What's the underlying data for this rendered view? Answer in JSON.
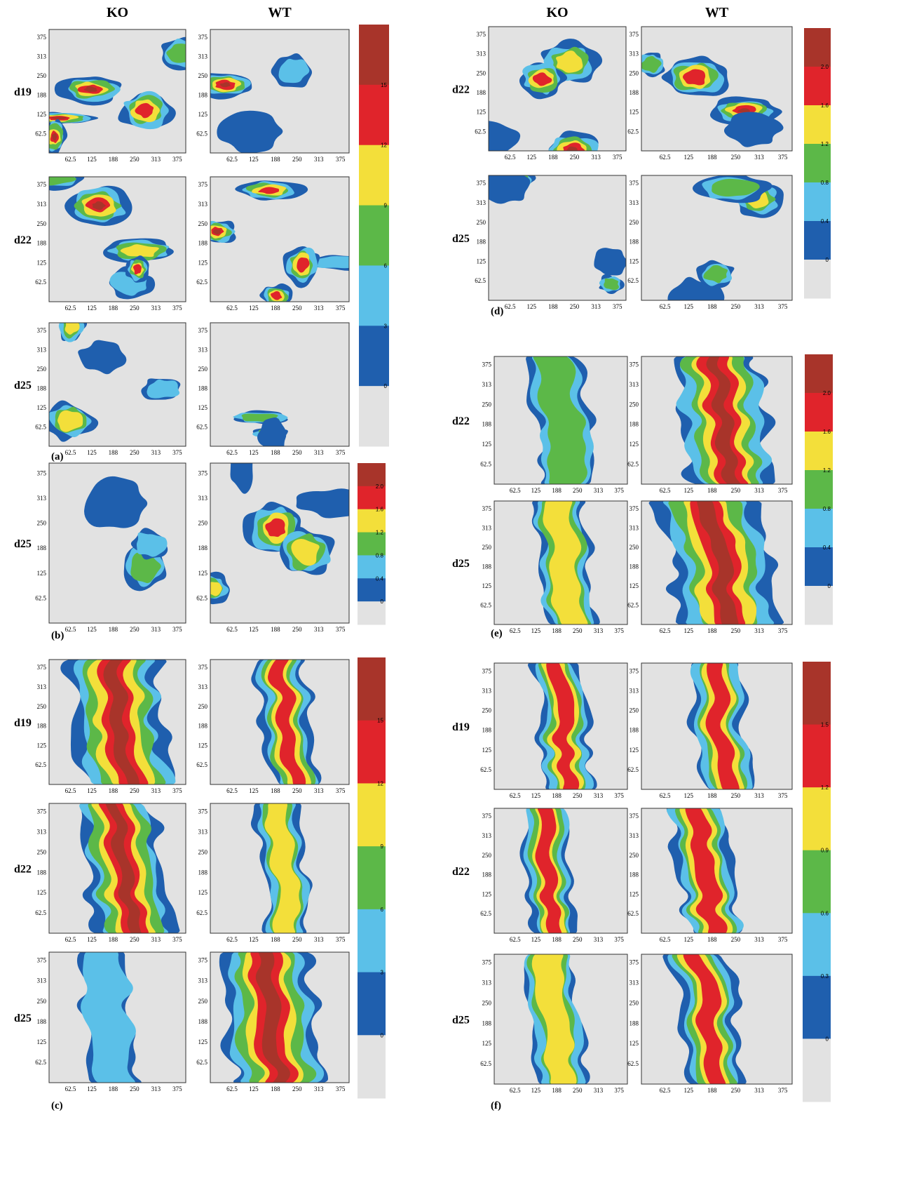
{
  "headers": [
    "KO",
    "WT"
  ],
  "axis_ticks": [
    "62.5",
    "125",
    "188",
    "250",
    "313",
    "375"
  ],
  "panels": [
    {
      "label": "(a)",
      "rows": [
        "d19",
        "d22",
        "d25"
      ],
      "colorbar": [
        "15",
        "12",
        "9",
        "6",
        "3",
        "0"
      ]
    },
    {
      "label": "(b)",
      "rows": [
        "d25"
      ],
      "colorbar": [
        "2.0",
        "1.6",
        "1.2",
        "0.8",
        "0.4",
        "0"
      ]
    },
    {
      "label": "(c)",
      "rows": [
        "d19",
        "d22",
        "d25"
      ],
      "colorbar": [
        "15",
        "12",
        "9",
        "6",
        "3",
        "0"
      ]
    },
    {
      "label": "(d)",
      "rows": [
        "d22",
        "d25"
      ],
      "colorbar": [
        "2.0",
        "1.6",
        "1.2",
        "0.8",
        "0.4",
        "0"
      ]
    },
    {
      "label": "(e)",
      "rows": [
        "d22",
        "d25"
      ],
      "colorbar": [
        "2.0",
        "1.6",
        "1.2",
        "0.8",
        "0.4",
        "0"
      ]
    },
    {
      "label": "(f)",
      "rows": [
        "d19",
        "d22",
        "d25"
      ],
      "colorbar": [
        "1.5",
        "1.2",
        "0.9",
        "0.6",
        "0.3",
        "0"
      ]
    }
  ]
}
